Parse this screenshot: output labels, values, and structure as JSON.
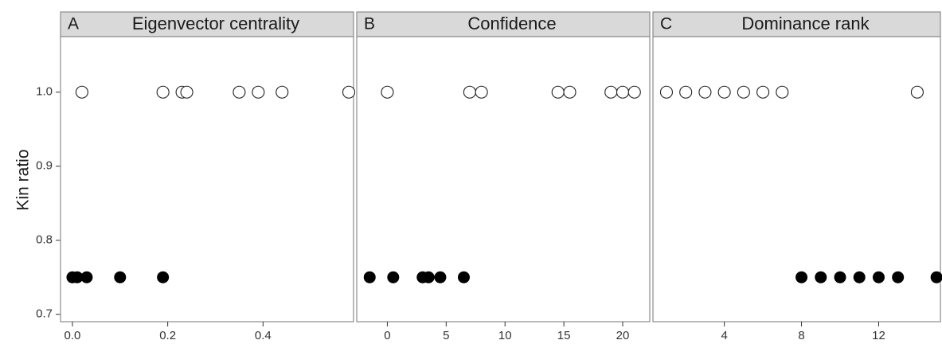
{
  "ylabel": "Kin ratio",
  "ylim": [
    0.69,
    1.075
  ],
  "yticks": [
    0.7,
    0.8,
    0.9,
    1.0
  ],
  "ytick_labels": [
    "0.7",
    "0.8",
    "0.9",
    "1.0"
  ],
  "chart_data": [
    {
      "type": "scatter",
      "panel_letter": "A",
      "title": "Eigenvector centrality",
      "xlim": [
        -0.025,
        0.59
      ],
      "xticks": [
        0.0,
        0.2,
        0.4
      ],
      "xtick_labels": [
        "0.0",
        "0.2",
        "0.4"
      ],
      "ylabel": "Kin ratio",
      "series": [
        {
          "marker": "filled",
          "x": [
            0.0,
            0.01,
            0.03,
            0.1,
            0.19
          ],
          "y": [
            0.75,
            0.75,
            0.75,
            0.75,
            0.75
          ]
        },
        {
          "marker": "open",
          "x": [
            0.02,
            0.19,
            0.23,
            0.24,
            0.35,
            0.39,
            0.44,
            0.58
          ],
          "y": [
            1.0,
            1.0,
            1.0,
            1.0,
            1.0,
            1.0,
            1.0,
            1.0
          ]
        }
      ]
    },
    {
      "type": "scatter",
      "panel_letter": "B",
      "title": "Confidence",
      "xlim": [
        -2.6,
        22.3
      ],
      "xticks": [
        0,
        5,
        10,
        15,
        20
      ],
      "xtick_labels": [
        "0",
        "5",
        "10",
        "15",
        "20"
      ],
      "ylabel": "Kin ratio",
      "series": [
        {
          "marker": "filled",
          "x": [
            -1.5,
            0.5,
            3.0,
            3.5,
            4.5,
            6.5
          ],
          "y": [
            0.75,
            0.75,
            0.75,
            0.75,
            0.75,
            0.75
          ]
        },
        {
          "marker": "open",
          "x": [
            0.0,
            7.0,
            8.0,
            14.5,
            15.5,
            19.0,
            20.0,
            21.0
          ],
          "y": [
            1.0,
            1.0,
            1.0,
            1.0,
            1.0,
            1.0,
            1.0,
            1.0
          ]
        }
      ]
    },
    {
      "type": "scatter",
      "panel_letter": "C",
      "title": "Dominance rank",
      "xlim": [
        0.3,
        15.2
      ],
      "xticks": [
        4,
        8,
        12
      ],
      "xtick_labels": [
        "4",
        "8",
        "12"
      ],
      "ylabel": "Kin ratio",
      "series": [
        {
          "marker": "filled",
          "x": [
            8,
            9,
            10,
            11,
            12,
            13,
            15
          ],
          "y": [
            0.75,
            0.75,
            0.75,
            0.75,
            0.75,
            0.75,
            0.75
          ]
        },
        {
          "marker": "open",
          "x": [
            1,
            2,
            3,
            4,
            5,
            6,
            7,
            14
          ],
          "y": [
            1.0,
            1.0,
            1.0,
            1.0,
            1.0,
            1.0,
            1.0,
            1.0
          ]
        }
      ]
    }
  ]
}
